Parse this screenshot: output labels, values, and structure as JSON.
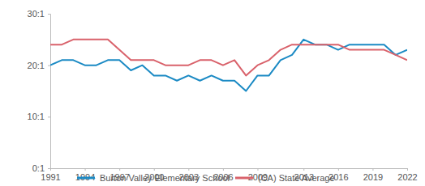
{
  "chart_data": {
    "type": "line",
    "x": [
      1991,
      1992,
      1993,
      1994,
      1995,
      1996,
      1997,
      1998,
      1999,
      2000,
      2001,
      2002,
      2003,
      2004,
      2005,
      2006,
      2007,
      2008,
      2009,
      2010,
      2011,
      2012,
      2013,
      2014,
      2015,
      2016,
      2017,
      2018,
      2019,
      2020,
      2021,
      2022
    ],
    "series": [
      {
        "name": "Burton Valley Elementary School",
        "color": "#1b8ac4",
        "values": [
          20,
          21,
          21,
          20,
          20,
          21,
          21,
          19,
          20,
          18,
          18,
          17,
          18,
          17,
          18,
          17,
          17,
          15,
          18,
          18,
          21,
          22,
          25,
          24,
          24,
          23,
          24,
          24,
          24,
          24,
          22,
          23
        ]
      },
      {
        "name": "(CA) State Average",
        "color": "#d9626b",
        "values": [
          24,
          24,
          25,
          25,
          25,
          25,
          23,
          21,
          21,
          21,
          20,
          20,
          20,
          21,
          21,
          20,
          21,
          18,
          20,
          21,
          23,
          24,
          24,
          24,
          24,
          24,
          23,
          23,
          23,
          23,
          22,
          21
        ]
      }
    ],
    "xlim": [
      1991,
      2022
    ],
    "xticks": [
      1991,
      1994,
      1997,
      2000,
      2003,
      2006,
      2009,
      2013,
      2016,
      2019,
      2022
    ],
    "ylim": [
      0,
      30
    ],
    "yticks": [
      {
        "value": 0,
        "label": "0:1"
      },
      {
        "value": 10,
        "label": "10:1"
      },
      {
        "value": 20,
        "label": "20:1"
      },
      {
        "value": 30,
        "label": "30:1"
      }
    ],
    "grid": false,
    "legend": "bottom"
  }
}
